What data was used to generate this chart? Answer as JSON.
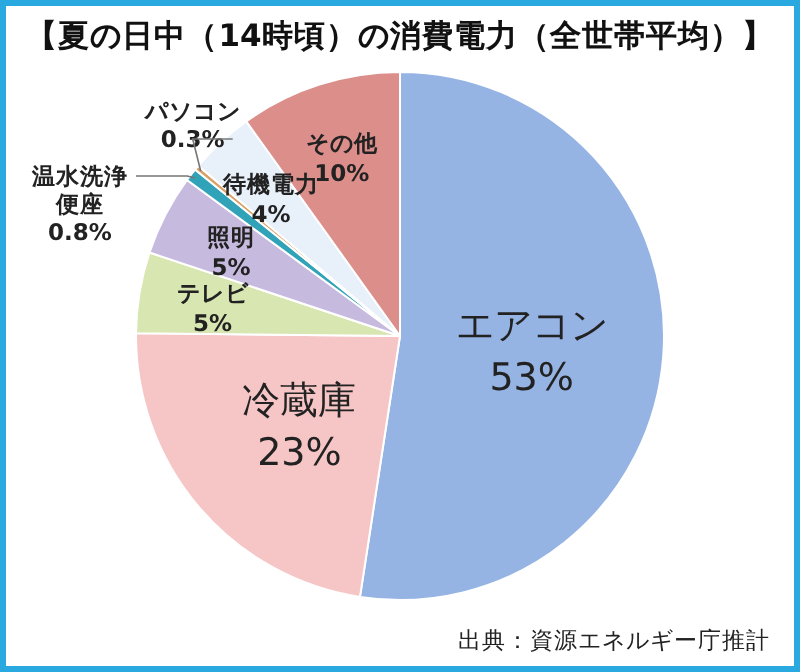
{
  "chart_data": {
    "type": "pie",
    "title": "【夏の日中（14時頃）の消費電力（全世帯平均）】",
    "categories": [
      "エアコン",
      "冷蔵庫",
      "テレビ",
      "照明",
      "温水洗浄便座",
      "パソコン",
      "待機電力",
      "その他"
    ],
    "values": [
      53,
      23,
      5,
      5,
      0.8,
      0.3,
      4,
      10
    ],
    "value_labels": [
      "53%",
      "23%",
      "5%",
      "5%",
      "0.8%",
      "0.3%",
      "4%",
      "10%"
    ],
    "colors": [
      "#95b3e3",
      "#f6c6c6",
      "#d8e6b2",
      "#c7badf",
      "#31a3b8",
      "#d9a066",
      "#e8f0fa",
      "#db8e8a"
    ],
    "annotations": [
      "出典：資源エネルギー庁推計"
    ]
  }
}
